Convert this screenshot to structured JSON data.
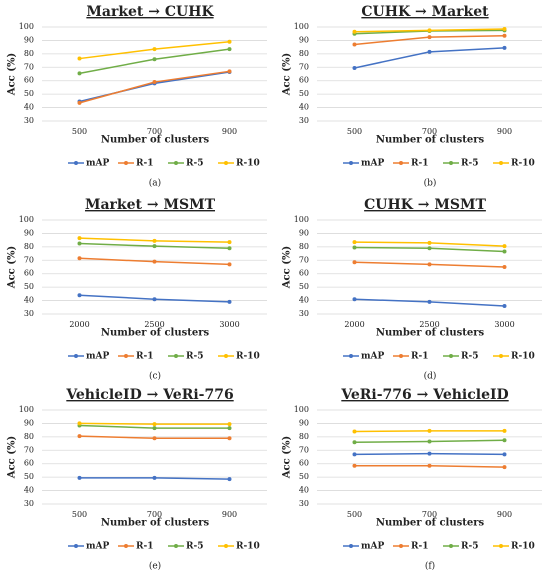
{
  "chart_data": [
    {
      "type": "line",
      "title": "Market → CUHK",
      "xlabel": "Number of clusters",
      "ylabel": "Acc (%)",
      "caption": "(a)",
      "categories": [
        "500",
        "700",
        "900"
      ],
      "ylim": [
        30,
        100
      ],
      "yticks": [
        30,
        40,
        50,
        60,
        70,
        80,
        90,
        100
      ],
      "grid": true,
      "series": [
        {
          "name": "mAP",
          "color": "#4472c4",
          "values": [
            44.5,
            58,
            66.5
          ]
        },
        {
          "name": "R-1",
          "color": "#ed7d31",
          "values": [
            43.5,
            59,
            67
          ]
        },
        {
          "name": "R-5",
          "color": "#70ad47",
          "values": [
            65.5,
            76,
            83.5
          ]
        },
        {
          "name": "R-10",
          "color": "#ffc000",
          "values": [
            76.5,
            83.5,
            89
          ]
        }
      ]
    },
    {
      "type": "line",
      "title": "CUHK → Market",
      "xlabel": "Number of clusters",
      "ylabel": "Acc (%)",
      "caption": "(b)",
      "categories": [
        "500",
        "700",
        "900"
      ],
      "ylim": [
        30,
        100
      ],
      "yticks": [
        30,
        40,
        50,
        60,
        70,
        80,
        90,
        100
      ],
      "grid": true,
      "series": [
        {
          "name": "mAP",
          "color": "#4472c4",
          "values": [
            69.5,
            81.5,
            84.5
          ]
        },
        {
          "name": "R-1",
          "color": "#ed7d31",
          "values": [
            87,
            92.5,
            93.5
          ]
        },
        {
          "name": "R-5",
          "color": "#70ad47",
          "values": [
            95,
            97,
            97.5
          ]
        },
        {
          "name": "R-10",
          "color": "#ffc000",
          "values": [
            96.5,
            97.5,
            98.5
          ]
        }
      ]
    },
    {
      "type": "line",
      "title": "Market → MSMT",
      "xlabel": "Number of clusters",
      "ylabel": "Acc (%)",
      "caption": "(c)",
      "categories": [
        "2000",
        "2500",
        "3000"
      ],
      "ylim": [
        30,
        100
      ],
      "yticks": [
        30,
        40,
        50,
        60,
        70,
        80,
        90,
        100
      ],
      "grid": true,
      "series": [
        {
          "name": "mAP",
          "color": "#4472c4",
          "values": [
            44,
            41,
            39
          ]
        },
        {
          "name": "R-1",
          "color": "#ed7d31",
          "values": [
            71.5,
            69,
            67
          ]
        },
        {
          "name": "R-5",
          "color": "#70ad47",
          "values": [
            82.5,
            80.5,
            79
          ]
        },
        {
          "name": "R-10",
          "color": "#ffc000",
          "values": [
            86.5,
            84.5,
            83.5
          ]
        }
      ]
    },
    {
      "type": "line",
      "title": "CUHK → MSMT",
      "xlabel": "Number of clusters",
      "ylabel": "Acc (%)",
      "caption": "(d)",
      "categories": [
        "2000",
        "2500",
        "3000"
      ],
      "ylim": [
        30,
        100
      ],
      "yticks": [
        30,
        40,
        50,
        60,
        70,
        80,
        90,
        100
      ],
      "grid": true,
      "series": [
        {
          "name": "mAP",
          "color": "#4472c4",
          "values": [
            41,
            39,
            36
          ]
        },
        {
          "name": "R-1",
          "color": "#ed7d31",
          "values": [
            68.5,
            67,
            65
          ]
        },
        {
          "name": "R-5",
          "color": "#70ad47",
          "values": [
            79.5,
            79,
            76.5
          ]
        },
        {
          "name": "R-10",
          "color": "#ffc000",
          "values": [
            83.5,
            83,
            80.5
          ]
        }
      ]
    },
    {
      "type": "line",
      "title": "VehicleID → VeRi-776",
      "xlabel": "Number of clusters",
      "ylabel": "Acc (%)",
      "caption": "(e)",
      "categories": [
        "500",
        "700",
        "900"
      ],
      "ylim": [
        30,
        100
      ],
      "yticks": [
        30,
        40,
        50,
        60,
        70,
        80,
        90,
        100
      ],
      "grid": true,
      "series": [
        {
          "name": "mAP",
          "color": "#4472c4",
          "values": [
            49.5,
            49.5,
            48.5
          ]
        },
        {
          "name": "R-1",
          "color": "#ed7d31",
          "values": [
            80.5,
            79,
            79
          ]
        },
        {
          "name": "R-5",
          "color": "#70ad47",
          "values": [
            88.5,
            86.5,
            86.5
          ]
        },
        {
          "name": "R-10",
          "color": "#ffc000",
          "values": [
            90,
            89.5,
            89.5
          ]
        }
      ]
    },
    {
      "type": "line",
      "title": "VeRi-776 → VehicleID",
      "xlabel": "Number of clusters",
      "ylabel": "Acc (%)",
      "caption": "(f)",
      "categories": [
        "500",
        "700",
        "900"
      ],
      "ylim": [
        30,
        100
      ],
      "yticks": [
        30,
        40,
        50,
        60,
        70,
        80,
        90,
        100
      ],
      "grid": true,
      "series": [
        {
          "name": "mAP",
          "color": "#4472c4",
          "values": [
            67,
            67.5,
            67
          ]
        },
        {
          "name": "R-1",
          "color": "#ed7d31",
          "values": [
            58.5,
            58.5,
            57.5
          ]
        },
        {
          "name": "R-5",
          "color": "#70ad47",
          "values": [
            76,
            76.5,
            77.5
          ]
        },
        {
          "name": "R-10",
          "color": "#ffc000",
          "values": [
            84,
            84.5,
            84.5
          ]
        }
      ]
    }
  ]
}
